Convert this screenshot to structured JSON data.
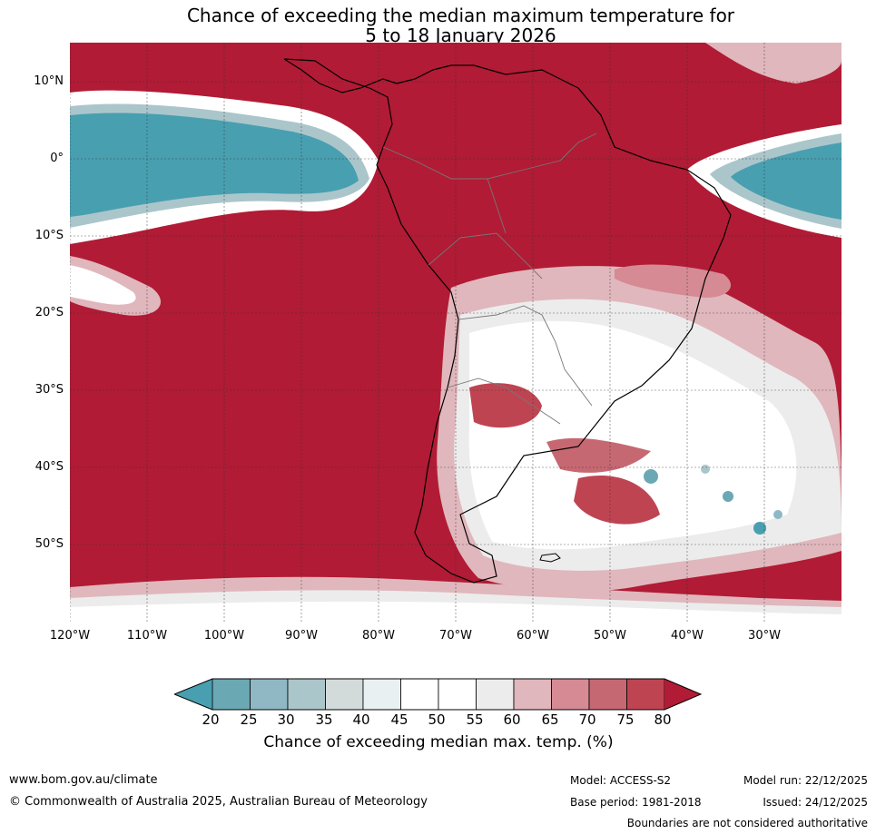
{
  "title": {
    "line1": "Chance of exceeding the median maximum temperature for",
    "line2": "5 to 18 January 2026"
  },
  "map": {
    "region": "South America and adjacent Pacific/Atlantic Oceans",
    "lat_labels": [
      "10°N",
      "0°",
      "10°S",
      "20°S",
      "30°S",
      "40°S",
      "50°S"
    ],
    "lon_labels": [
      "120°W",
      "110°W",
      "100°W",
      "90°W",
      "80°W",
      "70°W",
      "60°W",
      "50°W",
      "40°W",
      "30°W"
    ]
  },
  "colorbar": {
    "ticks": [
      "20",
      "25",
      "30",
      "35",
      "40",
      "45",
      "50",
      "55",
      "60",
      "65",
      "70",
      "75",
      "80"
    ],
    "colors": [
      "#489fb0",
      "#6aa8b4",
      "#8fb8c4",
      "#abc6cb",
      "#d2dada",
      "#e9f0f2",
      "#ffffff",
      "#ffffff",
      "#ececed",
      "#e0b7bc",
      "#d58a94",
      "#c66872",
      "#bf4452",
      "#b11b35"
    ],
    "label": "Chance of exceeding median max. temp. (%)"
  },
  "footer": {
    "website": "www.bom.gov.au/climate",
    "copyright": "© Commonwealth of Australia 2025, Australian Bureau of Meteorology",
    "model": "Model: ACCESS-S2",
    "model_run": "Model run: 22/12/2025",
    "base_period": "Base period: 1981-2018",
    "issued": "Issued: 24/12/2025",
    "disclaimer": "Boundaries are not considered authoritative"
  }
}
